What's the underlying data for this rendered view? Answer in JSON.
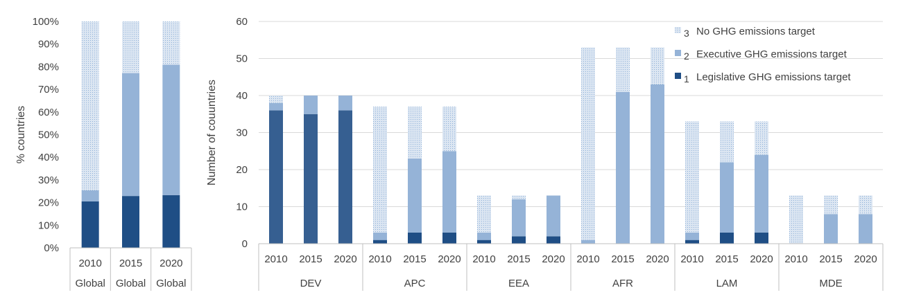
{
  "colors": {
    "legislative": "#1f4e85",
    "legislative_dev": "#365f91",
    "executive": "#95b3d7",
    "none_fill": "#dce6f2",
    "none_dot": "#8eb0d8",
    "axis": "#bfbfbf",
    "grid": "#d9d9d9",
    "text": "#404040"
  },
  "legend": [
    {
      "key": "none",
      "number": "3",
      "label": "No GHG emissions target"
    },
    {
      "key": "executive",
      "number": "2",
      "label": "Executive GHG emissions target"
    },
    {
      "key": "legislative",
      "number": "1",
      "label": "Legislative GHG emissions target"
    }
  ],
  "chart_data": [
    {
      "type": "bar",
      "stacked": true,
      "ylabel": "% countries",
      "ylim": [
        0,
        100
      ],
      "ytick_step": 10,
      "ytick_suffix": "%",
      "grid": false,
      "categories": [
        "2010",
        "2015",
        "2020"
      ],
      "groups": [
        "Global",
        "Global",
        "Global"
      ],
      "series": [
        {
          "name": "Legislative GHG emissions target",
          "key": "legislative",
          "values": [
            20.5,
            22.9,
            23.3
          ]
        },
        {
          "name": "Executive GHG emissions target",
          "key": "executive",
          "values": [
            4.9,
            54.3,
            57.6
          ]
        },
        {
          "name": "No GHG emissions target",
          "key": "none",
          "values": [
            74.6,
            22.8,
            19.1
          ]
        }
      ]
    },
    {
      "type": "bar",
      "stacked": true,
      "ylabel": "Number of couuntries",
      "ylim": [
        0,
        60
      ],
      "ytick_step": 10,
      "grid": true,
      "legend_position": "top-right",
      "years": [
        "2010",
        "2015",
        "2020"
      ],
      "groups": [
        "DEV",
        "APC",
        "EEA",
        "AFR",
        "LAM",
        "MDE"
      ],
      "series": [
        {
          "name": "Legislative GHG emissions target",
          "key": "legislative",
          "values": [
            36,
            35,
            36,
            1,
            3,
            3,
            1,
            2,
            2,
            0,
            0,
            0,
            1,
            3,
            3,
            0,
            0,
            0
          ]
        },
        {
          "name": "Executive GHG emissions target",
          "key": "executive",
          "values": [
            2,
            5,
            4,
            2,
            20,
            22,
            2,
            10,
            11,
            1,
            41,
            43,
            2,
            19,
            21,
            0,
            8,
            8
          ]
        },
        {
          "name": "No GHG emissions target",
          "key": "none",
          "values": [
            2,
            0,
            0,
            34,
            14,
            12,
            10,
            1,
            0,
            52,
            12,
            10,
            30,
            11,
            9,
            13,
            5,
            5
          ]
        }
      ]
    }
  ]
}
